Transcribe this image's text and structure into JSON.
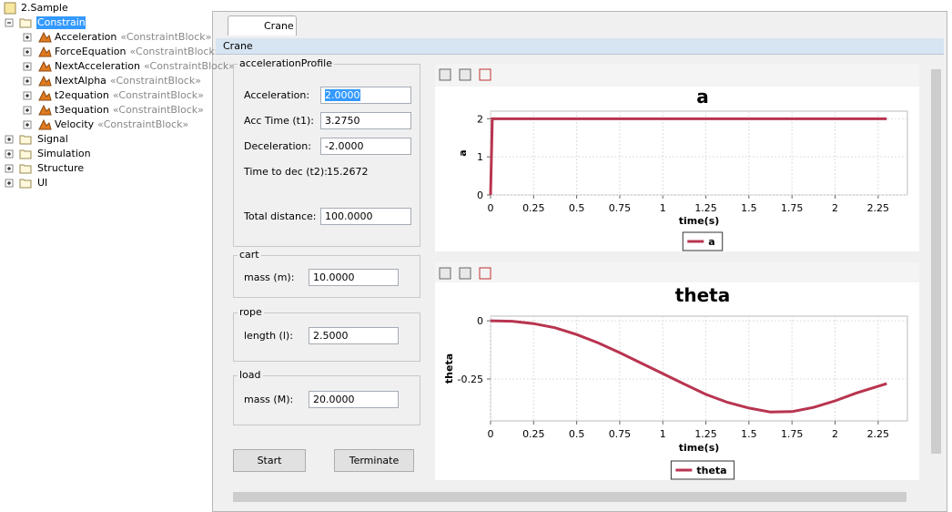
{
  "tree": {
    "root": "2.Sample",
    "items": [
      {
        "name": "Constraint",
        "children": [
          {
            "name": "Acceleration",
            "stereotype": "«ConstraintBlock»"
          },
          {
            "name": "ForceEquation",
            "stereotype": "«ConstraintBlock»"
          },
          {
            "name": "NextAcceleration",
            "stereotype": "«ConstraintBlock»"
          },
          {
            "name": "NextAlpha",
            "stereotype": "«ConstraintBlock»"
          },
          {
            "name": "t2equation",
            "stereotype": "«ConstraintBlock»"
          },
          {
            "name": "t3equation",
            "stereotype": "«ConstraintBlock»"
          },
          {
            "name": "Velocity",
            "stereotype": "«ConstraintBlock»"
          }
        ]
      },
      {
        "name": "Signal"
      },
      {
        "name": "Simulation"
      },
      {
        "name": "Structure"
      },
      {
        "name": "UI"
      }
    ]
  },
  "tab": "Crane",
  "panel_title": "Crane",
  "groups": [
    {
      "title": "accelerationProfile",
      "fields": [
        {
          "label": "Acceleration:",
          "value": "2.0000"
        },
        {
          "label": "Acc Time (t1):",
          "value": "3.2750"
        },
        {
          "label": "Deceleration:",
          "value": "-2.0000"
        },
        {
          "label": "Time to dec (t2):",
          "value": "15.2672"
        },
        {
          "label": "Total distance:",
          "value": "100.0000"
        }
      ]
    },
    {
      "title": "cart",
      "fields": [
        {
          "label": "mass (m):",
          "value": "10.0000"
        }
      ]
    },
    {
      "title": "rope",
      "fields": [
        {
          "label": "length (l):",
          "value": "2.5000"
        }
      ]
    },
    {
      "title": "load",
      "fields": [
        {
          "label": "mass (M):",
          "value": "20.0000"
        }
      ]
    }
  ],
  "buttons": [
    "Start",
    "Terminate"
  ],
  "charts": [
    {
      "type": "line",
      "title": "a",
      "x_label": "time(s)",
      "y_label": "a",
      "x": [
        0,
        0.01,
        2.3
      ],
      "series": [
        {
          "name": "a",
          "color": "#b83450",
          "values": [
            0,
            2,
            2
          ]
        }
      ],
      "xlim": [
        0,
        2.42
      ],
      "ylim": [
        0,
        2.2
      ],
      "xticks": [
        0,
        0.25,
        0.5,
        0.75,
        1,
        1.25,
        1.5,
        1.75,
        2,
        2.25
      ],
      "yticks": [
        0,
        1,
        2
      ],
      "grid": true,
      "legend": "bottom"
    },
    {
      "type": "line",
      "title": "theta",
      "x_label": "time(s)",
      "y_label": "theta",
      "x": [
        0,
        0.125,
        0.25,
        0.375,
        0.5,
        0.625,
        0.75,
        0.875,
        1,
        1.125,
        1.25,
        1.375,
        1.5,
        1.625,
        1.75,
        1.875,
        2,
        2.125,
        2.3
      ],
      "series": [
        {
          "name": "theta",
          "color": "#b83450",
          "values": [
            0,
            -0.002,
            -0.012,
            -0.03,
            -0.059,
            -0.095,
            -0.137,
            -0.182,
            -0.227,
            -0.272,
            -0.316,
            -0.35,
            -0.375,
            -0.392,
            -0.39,
            -0.372,
            -0.344,
            -0.31,
            -0.27
          ]
        }
      ],
      "xlim": [
        0,
        2.42
      ],
      "ylim": [
        -0.43,
        0.02
      ],
      "xticks": [
        0,
        0.25,
        0.5,
        0.75,
        1,
        1.25,
        1.5,
        1.75,
        2,
        2.25
      ],
      "yticks": [
        0,
        -0.25
      ],
      "grid": true,
      "legend": "bottom"
    }
  ]
}
